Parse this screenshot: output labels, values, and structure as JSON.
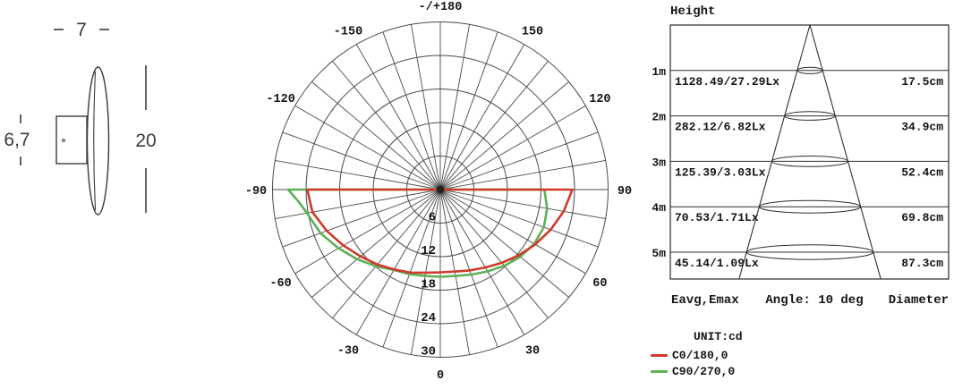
{
  "drawing": {
    "width_label": "7",
    "depth_label": "6,7",
    "diameter_label": "20"
  },
  "chart_data": {
    "type": "polar",
    "subtype": "luminous-intensity-distribution",
    "unit": "cd",
    "angle_step_deg": 10,
    "angle_zero_direction": "down",
    "r_max": 30,
    "r_step": 6,
    "ring_values": [
      6,
      12,
      18,
      24,
      30
    ],
    "angle_labels": [
      {
        "angle": 180,
        "label": "-/+180"
      },
      {
        "angle": -150,
        "label": "-150"
      },
      {
        "angle": 150,
        "label": "150"
      },
      {
        "angle": -120,
        "label": "-120"
      },
      {
        "angle": 120,
        "label": "120"
      },
      {
        "angle": -90,
        "label": "-90"
      },
      {
        "angle": 90,
        "label": "90"
      },
      {
        "angle": -60,
        "label": "-60"
      },
      {
        "angle": 60,
        "label": "60"
      },
      {
        "angle": -30,
        "label": "-30"
      },
      {
        "angle": 30,
        "label": "30"
      },
      {
        "angle": 0,
        "label": "0"
      }
    ],
    "series": [
      {
        "name": "C0/180,0",
        "color": "#cf3a2b",
        "points": [
          [
            -90,
            23.8
          ],
          [
            -80,
            23.2
          ],
          [
            -70,
            21.6
          ],
          [
            -60,
            20.0
          ],
          [
            -50,
            18.6
          ],
          [
            -40,
            17.5
          ],
          [
            -30,
            16.5
          ],
          [
            -20,
            15.8
          ],
          [
            -10,
            15.1
          ],
          [
            0,
            14.8
          ],
          [
            10,
            14.9
          ],
          [
            20,
            15.4
          ],
          [
            30,
            16.1
          ],
          [
            40,
            17.1
          ],
          [
            50,
            18.3
          ],
          [
            60,
            19.6
          ],
          [
            70,
            21.0
          ],
          [
            80,
            22.4
          ],
          [
            90,
            23.6
          ]
        ]
      },
      {
        "name": "C90/270,0",
        "color": "#5faf57",
        "points": [
          [
            -90,
            27.2
          ],
          [
            -85,
            25.4
          ],
          [
            -80,
            24.2
          ],
          [
            -70,
            22.8
          ],
          [
            -60,
            21.0
          ],
          [
            -50,
            19.4
          ],
          [
            -40,
            17.9
          ],
          [
            -30,
            16.6
          ],
          [
            -20,
            16.1
          ],
          [
            -10,
            15.7
          ],
          [
            0,
            15.6
          ],
          [
            10,
            15.7
          ],
          [
            20,
            16.2
          ],
          [
            30,
            16.9
          ],
          [
            40,
            17.8
          ],
          [
            50,
            18.7
          ],
          [
            60,
            19.4
          ],
          [
            70,
            19.7
          ],
          [
            80,
            19.4
          ],
          [
            90,
            18.6
          ]
        ]
      }
    ]
  },
  "cone": {
    "title": "Height",
    "beam_angle_deg": 10,
    "rows": [
      {
        "height": "1m",
        "eavg_emax": "1128.49/27.29Lx",
        "diameter": "17.5cm"
      },
      {
        "height": "2m",
        "eavg_emax": "282.12/6.82Lx",
        "diameter": "34.9cm"
      },
      {
        "height": "3m",
        "eavg_emax": "125.39/3.03Lx",
        "diameter": "52.4cm"
      },
      {
        "height": "4m",
        "eavg_emax": "70.53/1.71Lx",
        "diameter": "69.8cm"
      },
      {
        "height": "5m",
        "eavg_emax": "45.14/1.09Lx",
        "diameter": "87.3cm"
      }
    ],
    "footer": {
      "left": "Eavg,Emax",
      "center": "Angle: 10 deg",
      "right": "Diameter"
    }
  },
  "legend": {
    "unit_label": "UNIT:cd"
  }
}
